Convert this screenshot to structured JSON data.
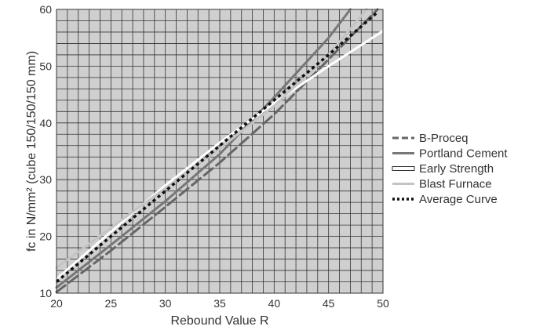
{
  "chart_data": {
    "type": "line",
    "xlabel": "Rebound Value R",
    "ylabel": "fc in N/mm² (cube 150/150/150 mm)",
    "xlim": [
      20,
      50
    ],
    "ylim": [
      10,
      60
    ],
    "x_ticks": [
      20,
      25,
      30,
      35,
      40,
      45,
      50
    ],
    "y_ticks": [
      10,
      20,
      30,
      40,
      50,
      60
    ],
    "grid": true,
    "minor_grid_step": {
      "x": 1,
      "y": 2
    },
    "plot_background": "#cfcfcf",
    "legend_position": "right",
    "series": [
      {
        "name": "B-Proceq",
        "color": "#666666",
        "style": "dashed",
        "x": [
          20,
          25,
          30,
          35,
          40,
          45,
          49.5
        ],
        "y": [
          10.2,
          17.5,
          25.2,
          33.0,
          41.5,
          51.2,
          60.0
        ]
      },
      {
        "name": "Portland Cement",
        "color": "#777777",
        "style": "solid",
        "x": [
          20,
          25,
          30,
          35,
          40,
          45,
          47.0
        ],
        "y": [
          11.0,
          18.5,
          26.2,
          34.5,
          44.5,
          55.0,
          60.0
        ]
      },
      {
        "name": "Early Strength",
        "color": "#ffffff",
        "style": "solid",
        "x": [
          20,
          25,
          30,
          35,
          40,
          45,
          50
        ],
        "y": [
          12.5,
          20.8,
          29.0,
          36.5,
          43.5,
          50.0,
          56.2
        ]
      },
      {
        "name": "Blast Furnace",
        "color": "#c4c4c4",
        "style": "solid",
        "x": [
          20,
          25,
          30,
          35,
          40,
          45,
          48.5
        ],
        "y": [
          14.5,
          21.5,
          28.5,
          35.5,
          43.0,
          52.0,
          60.0
        ]
      },
      {
        "name": "Average Curve",
        "color": "#111111",
        "style": "dotted",
        "x": [
          20,
          25,
          30,
          35,
          40,
          45,
          49.5
        ],
        "y": [
          12.0,
          20.0,
          28.0,
          36.0,
          44.0,
          52.0,
          59.5
        ]
      }
    ]
  }
}
